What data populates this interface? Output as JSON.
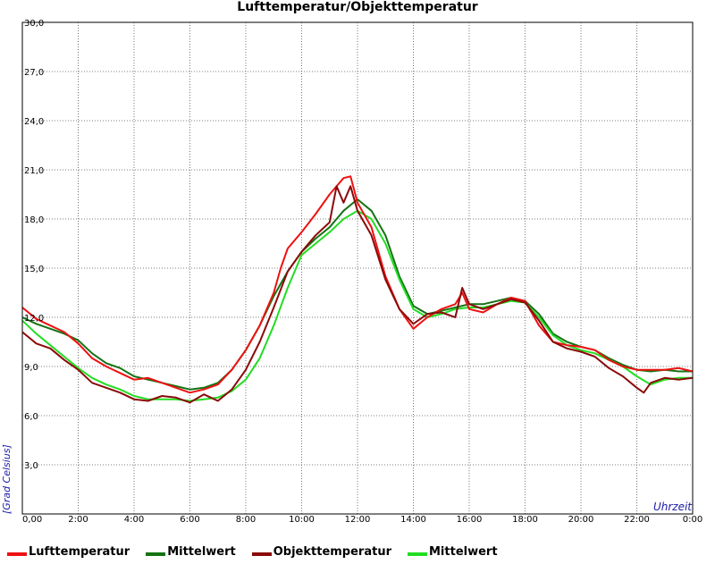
{
  "chart_data": {
    "type": "line",
    "title": "Lufttemperatur/Objekttemperatur",
    "xlabel": "Uhrzeit",
    "ylabel": "[Grad Celsius]",
    "xlim": [
      0,
      24
    ],
    "ylim": [
      0,
      30
    ],
    "x_ticks": [
      "0,00",
      "2:00",
      "4:00",
      "6:00",
      "8:00",
      "10:00",
      "12:00",
      "14:00",
      "16:00",
      "18:00",
      "20:00",
      "22:00",
      "0:00"
    ],
    "y_ticks": [
      "3,0",
      "6,0",
      "9,0",
      "12,0",
      "15,0",
      "18,0",
      "21,0",
      "24,0",
      "27,0",
      "30,0"
    ],
    "grid": true,
    "legend_position": "bottom",
    "series": [
      {
        "name": "Lufttemperatur",
        "color": "#ee1111",
        "x": [
          0,
          0.5,
          1,
          1.5,
          2,
          2.5,
          3,
          3.5,
          4,
          4.5,
          5,
          5.5,
          6,
          6.5,
          7,
          7.5,
          8,
          8.5,
          9,
          9.25,
          9.5,
          10,
          10.5,
          11,
          11.5,
          11.75,
          12,
          12.5,
          13,
          13.5,
          14,
          14.5,
          15,
          15.5,
          15.75,
          16,
          16.5,
          17,
          17.5,
          18,
          18.5,
          19,
          19.5,
          20,
          20.5,
          21,
          21.5,
          22,
          22.5,
          23,
          23.5,
          24
        ],
        "values": [
          12.6,
          11.9,
          11.5,
          11.1,
          10.4,
          9.5,
          9.0,
          8.6,
          8.2,
          8.3,
          8.0,
          7.7,
          7.4,
          7.6,
          7.9,
          8.8,
          10.0,
          11.5,
          13.5,
          15.0,
          16.2,
          17.2,
          18.3,
          19.5,
          20.5,
          20.6,
          19.0,
          17.5,
          14.5,
          12.5,
          11.3,
          12.0,
          12.5,
          12.8,
          13.5,
          12.5,
          12.3,
          12.8,
          13.2,
          13.0,
          11.5,
          10.5,
          10.3,
          10.2,
          10.0,
          9.4,
          9.0,
          8.8,
          8.8,
          8.8,
          8.9,
          8.7
        ]
      },
      {
        "name": "Mittelwert",
        "color": "#137313",
        "x": [
          0,
          0.5,
          1,
          1.5,
          2,
          2.5,
          3,
          3.5,
          4,
          4.5,
          5,
          5.5,
          6,
          6.5,
          7,
          7.5,
          8,
          8.5,
          9,
          9.5,
          10,
          10.5,
          11,
          11.5,
          12,
          12.5,
          13,
          13.5,
          14,
          14.5,
          15,
          15.5,
          16,
          16.5,
          17,
          17.5,
          18,
          18.5,
          19,
          19.5,
          20,
          20.5,
          21,
          21.5,
          22,
          22.5,
          23,
          23.5,
          24
        ],
        "values": [
          12.0,
          11.6,
          11.3,
          11.0,
          10.6,
          9.8,
          9.2,
          8.9,
          8.4,
          8.2,
          8.0,
          7.8,
          7.6,
          7.7,
          8.0,
          8.8,
          10.0,
          11.5,
          13.3,
          14.8,
          16.0,
          16.8,
          17.5,
          18.5,
          19.2,
          18.5,
          17.0,
          14.5,
          12.7,
          12.2,
          12.4,
          12.6,
          12.8,
          12.8,
          13.0,
          13.2,
          13.0,
          12.2,
          11.0,
          10.5,
          10.2,
          10.0,
          9.5,
          9.1,
          8.8,
          8.7,
          8.8,
          8.7,
          8.7
        ]
      },
      {
        "name": "Objekttemperatur",
        "color": "#8b0a0a",
        "x": [
          0,
          0.5,
          1,
          1.5,
          2,
          2.5,
          3,
          3.5,
          4,
          4.5,
          5,
          5.5,
          6,
          6.5,
          7,
          7.5,
          8,
          8.5,
          9,
          9.5,
          10,
          10.5,
          11,
          11.25,
          11.5,
          11.75,
          12,
          12.5,
          13,
          13.5,
          14,
          14.5,
          15,
          15.5,
          15.75,
          16,
          16.5,
          17,
          17.5,
          18,
          18.5,
          19,
          19.5,
          20,
          20.5,
          21,
          21.5,
          22,
          22.25,
          22.5,
          23,
          23.5,
          24
        ],
        "values": [
          11.1,
          10.4,
          10.1,
          9.4,
          8.8,
          8.0,
          7.7,
          7.4,
          7.0,
          6.9,
          7.2,
          7.1,
          6.8,
          7.3,
          6.9,
          7.6,
          8.8,
          10.5,
          12.6,
          14.8,
          16.0,
          17.0,
          17.8,
          20.0,
          19.0,
          20.0,
          18.5,
          17.0,
          14.3,
          12.5,
          11.6,
          12.2,
          12.3,
          12.0,
          13.8,
          12.8,
          12.5,
          12.8,
          13.1,
          12.9,
          11.8,
          10.5,
          10.1,
          9.9,
          9.6,
          8.9,
          8.4,
          7.7,
          7.4,
          8.0,
          8.3,
          8.2,
          8.3
        ]
      },
      {
        "name": "Mittelwert",
        "color": "#22dd22",
        "x": [
          0,
          0.5,
          1,
          1.5,
          2,
          2.5,
          3,
          3.5,
          4,
          4.5,
          5,
          5.5,
          6,
          6.5,
          7,
          7.5,
          8,
          8.5,
          9,
          9.5,
          10,
          10.5,
          11,
          11.5,
          12,
          12.5,
          13,
          13.5,
          14,
          14.5,
          15,
          15.5,
          16,
          16.5,
          17,
          17.5,
          18,
          18.5,
          19,
          19.5,
          20,
          20.5,
          21,
          21.5,
          22,
          22.5,
          23,
          23.5,
          24
        ],
        "values": [
          11.8,
          11.0,
          10.3,
          9.6,
          8.9,
          8.3,
          7.9,
          7.6,
          7.2,
          7.0,
          7.0,
          7.0,
          6.9,
          7.0,
          7.1,
          7.5,
          8.2,
          9.5,
          11.5,
          13.8,
          15.8,
          16.5,
          17.2,
          18.0,
          18.5,
          18.0,
          16.5,
          14.3,
          12.5,
          12.0,
          12.2,
          12.5,
          12.6,
          12.6,
          12.8,
          13.0,
          12.9,
          12.0,
          10.9,
          10.3,
          10.0,
          9.8,
          9.4,
          9.0,
          8.4,
          7.9,
          8.2,
          8.3,
          8.3
        ]
      }
    ]
  }
}
